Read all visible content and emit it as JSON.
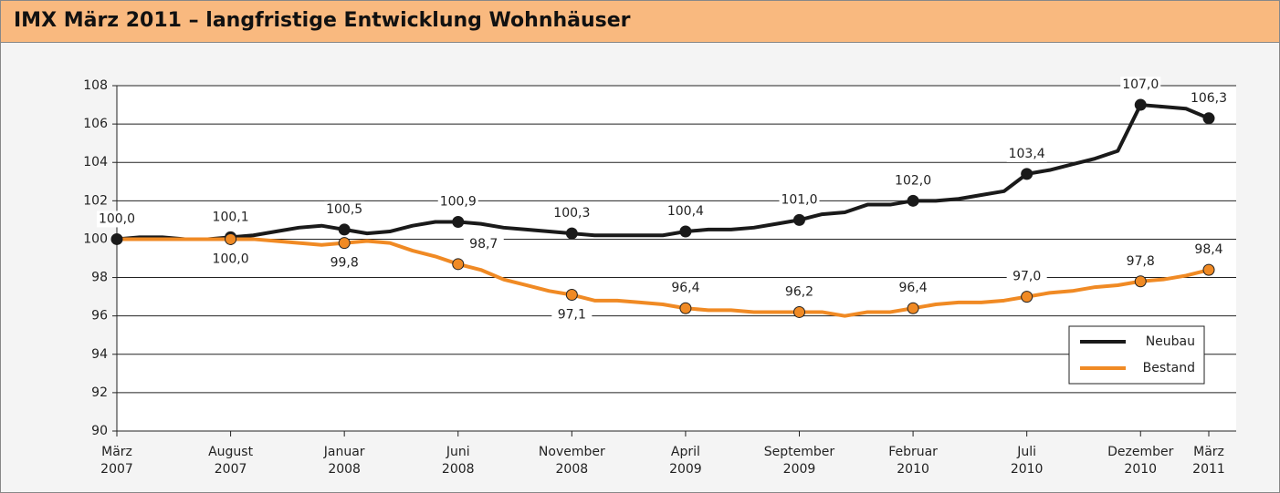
{
  "chart_data": {
    "type": "line",
    "title": "IMX März 2011 – langfristige Entwicklung Wohnhäuser",
    "categories": [
      "März\n2007",
      null,
      null,
      null,
      null,
      "August\n2007",
      null,
      null,
      null,
      null,
      "Januar\n2008",
      null,
      null,
      null,
      null,
      "Juni\n2008",
      null,
      null,
      null,
      null,
      "November\n2008",
      null,
      null,
      null,
      null,
      "April\n2009",
      null,
      null,
      null,
      null,
      "September\n2009",
      null,
      null,
      null,
      null,
      "Februar\n2010",
      null,
      null,
      null,
      null,
      "Juli\n2010",
      null,
      null,
      null,
      null,
      "Dezember\n2010",
      null,
      null,
      "März\n2011"
    ],
    "series": [
      {
        "name": "Neubau",
        "color": "#1a1a1a",
        "values": [
          100.0,
          100.1,
          100.1,
          100.0,
          100.0,
          100.1,
          100.2,
          100.4,
          100.6,
          100.7,
          100.5,
          100.3,
          100.4,
          100.7,
          100.9,
          100.9,
          100.8,
          100.6,
          100.5,
          100.4,
          100.3,
          100.2,
          100.2,
          100.2,
          100.2,
          100.4,
          100.5,
          100.5,
          100.6,
          100.8,
          101.0,
          101.3,
          101.4,
          101.8,
          101.8,
          102.0,
          102.0,
          102.1,
          102.3,
          102.5,
          103.4,
          103.6,
          103.9,
          104.2,
          104.6,
          107.0,
          106.9,
          106.8,
          106.3
        ],
        "value_labels": [
          "100,0",
          null,
          null,
          null,
          null,
          "100,1",
          null,
          null,
          null,
          null,
          "100,5",
          null,
          null,
          null,
          null,
          "100,9",
          null,
          null,
          null,
          null,
          "100,3",
          null,
          null,
          null,
          null,
          "100,4",
          null,
          null,
          null,
          null,
          "101,0",
          null,
          null,
          null,
          null,
          "102,0",
          null,
          null,
          null,
          null,
          "103,4",
          null,
          null,
          null,
          null,
          "107,0",
          null,
          null,
          "106,3"
        ]
      },
      {
        "name": "Bestand",
        "color": "#f08a24",
        "values": [
          100.0,
          100.0,
          100.0,
          100.0,
          100.0,
          100.0,
          100.0,
          99.9,
          99.8,
          99.7,
          99.8,
          99.9,
          99.8,
          99.4,
          99.1,
          98.7,
          98.4,
          97.9,
          97.6,
          97.3,
          97.1,
          96.8,
          96.8,
          96.7,
          96.6,
          96.4,
          96.3,
          96.3,
          96.2,
          96.2,
          96.2,
          96.2,
          96.0,
          96.2,
          96.2,
          96.4,
          96.6,
          96.7,
          96.7,
          96.8,
          97.0,
          97.2,
          97.3,
          97.5,
          97.6,
          97.8,
          97.9,
          98.1,
          98.4
        ],
        "value_labels": [
          null,
          null,
          null,
          null,
          null,
          "100,0",
          null,
          null,
          null,
          null,
          "99,8",
          null,
          null,
          null,
          null,
          "98,7",
          null,
          null,
          null,
          null,
          "97,1",
          null,
          null,
          null,
          null,
          "96,4",
          null,
          null,
          null,
          null,
          "96,2",
          null,
          null,
          null,
          null,
          "96,4",
          null,
          null,
          null,
          null,
          "97,0",
          null,
          null,
          null,
          null,
          "97,8",
          null,
          null,
          "98,4"
        ]
      }
    ],
    "ylim": [
      90,
      108
    ],
    "yticks": [
      90,
      92,
      94,
      96,
      98,
      100,
      102,
      104,
      106,
      108
    ],
    "grid": true,
    "legend": "lower right"
  }
}
